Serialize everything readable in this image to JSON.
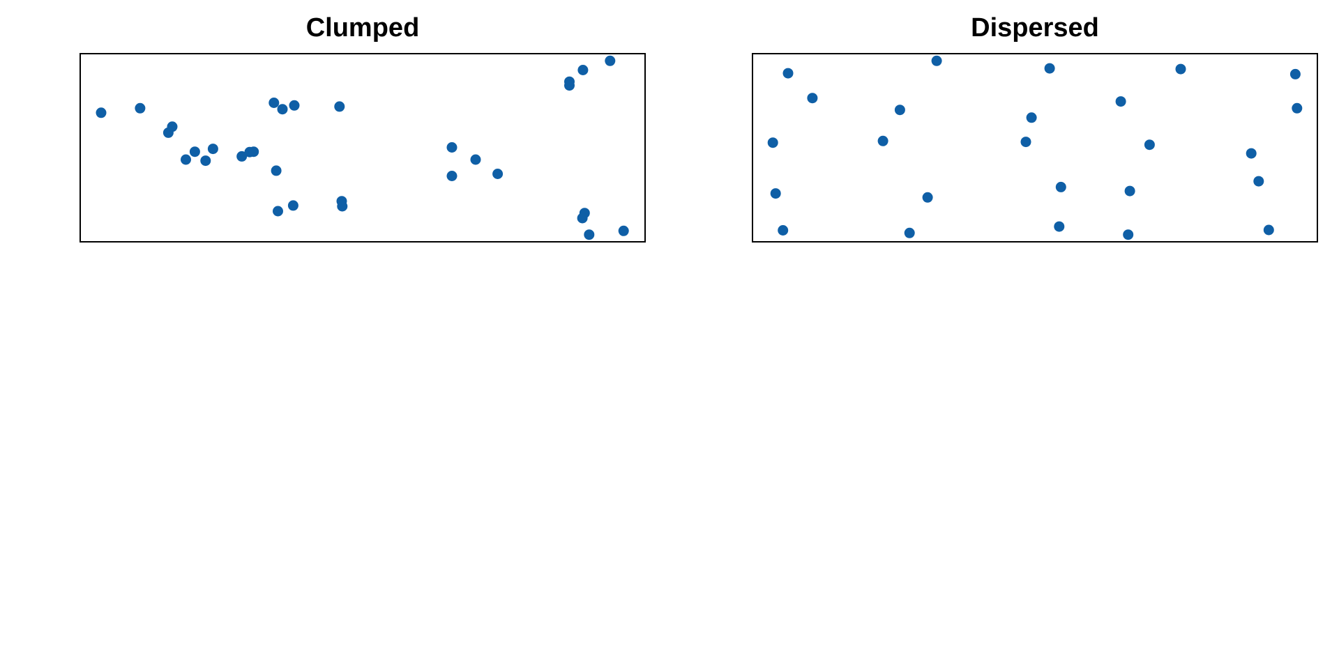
{
  "chart_data": [
    {
      "type": "scatter",
      "title": "Clumped",
      "xlabel": "",
      "ylabel": "",
      "axes_visible": false,
      "grid": false,
      "xlim": [
        0,
        100
      ],
      "ylim": [
        0,
        100
      ],
      "marker_color": "#0f5fa6",
      "points": [
        {
          "x": 3.7,
          "y": 68.6
        },
        {
          "x": 10.6,
          "y": 71.0
        },
        {
          "x": 15.6,
          "y": 58.0
        },
        {
          "x": 16.3,
          "y": 61.2
        },
        {
          "x": 18.7,
          "y": 43.7
        },
        {
          "x": 20.3,
          "y": 47.9
        },
        {
          "x": 22.2,
          "y": 43.1
        },
        {
          "x": 23.5,
          "y": 49.4
        },
        {
          "x": 28.6,
          "y": 45.4
        },
        {
          "x": 30.0,
          "y": 47.7
        },
        {
          "x": 30.7,
          "y": 47.9
        },
        {
          "x": 34.3,
          "y": 73.9
        },
        {
          "x": 35.8,
          "y": 70.5
        },
        {
          "x": 37.9,
          "y": 72.5
        },
        {
          "x": 34.7,
          "y": 37.8
        },
        {
          "x": 35.0,
          "y": 16.3
        },
        {
          "x": 37.7,
          "y": 19.3
        },
        {
          "x": 45.9,
          "y": 71.9
        },
        {
          "x": 46.3,
          "y": 21.6
        },
        {
          "x": 46.4,
          "y": 18.9
        },
        {
          "x": 65.8,
          "y": 50.2
        },
        {
          "x": 70.0,
          "y": 43.7
        },
        {
          "x": 65.8,
          "y": 35.0
        },
        {
          "x": 73.9,
          "y": 36.1
        },
        {
          "x": 86.6,
          "y": 85.1
        },
        {
          "x": 86.6,
          "y": 83.1
        },
        {
          "x": 89.0,
          "y": 91.3
        },
        {
          "x": 93.8,
          "y": 96.2
        },
        {
          "x": 89.3,
          "y": 15.3
        },
        {
          "x": 88.9,
          "y": 12.6
        },
        {
          "x": 90.1,
          "y": 3.8
        },
        {
          "x": 96.2,
          "y": 5.8
        }
      ]
    },
    {
      "type": "scatter",
      "title": "Dispersed",
      "xlabel": "",
      "ylabel": "",
      "axes_visible": false,
      "grid": false,
      "xlim": [
        0,
        100
      ],
      "ylim": [
        0,
        100
      ],
      "marker_color": "#0f5fa6",
      "points": [
        {
          "x": 6.3,
          "y": 89.6
        },
        {
          "x": 32.6,
          "y": 96.2
        },
        {
          "x": 52.6,
          "y": 92.2
        },
        {
          "x": 75.8,
          "y": 91.8
        },
        {
          "x": 96.1,
          "y": 89.1
        },
        {
          "x": 10.6,
          "y": 76.4
        },
        {
          "x": 26.1,
          "y": 70.1
        },
        {
          "x": 49.4,
          "y": 66.0
        },
        {
          "x": 65.2,
          "y": 74.6
        },
        {
          "x": 96.4,
          "y": 71.0
        },
        {
          "x": 3.6,
          "y": 52.7
        },
        {
          "x": 23.1,
          "y": 53.6
        },
        {
          "x": 48.4,
          "y": 53.1
        },
        {
          "x": 70.3,
          "y": 51.6
        },
        {
          "x": 88.3,
          "y": 47.0
        },
        {
          "x": 4.1,
          "y": 25.7
        },
        {
          "x": 31.0,
          "y": 23.6
        },
        {
          "x": 54.6,
          "y": 29.1
        },
        {
          "x": 66.8,
          "y": 27.0
        },
        {
          "x": 89.6,
          "y": 32.2
        },
        {
          "x": 5.4,
          "y": 6.1
        },
        {
          "x": 27.8,
          "y": 4.7
        },
        {
          "x": 54.3,
          "y": 8.1
        },
        {
          "x": 66.5,
          "y": 3.8
        },
        {
          "x": 91.4,
          "y": 6.3
        }
      ]
    }
  ]
}
